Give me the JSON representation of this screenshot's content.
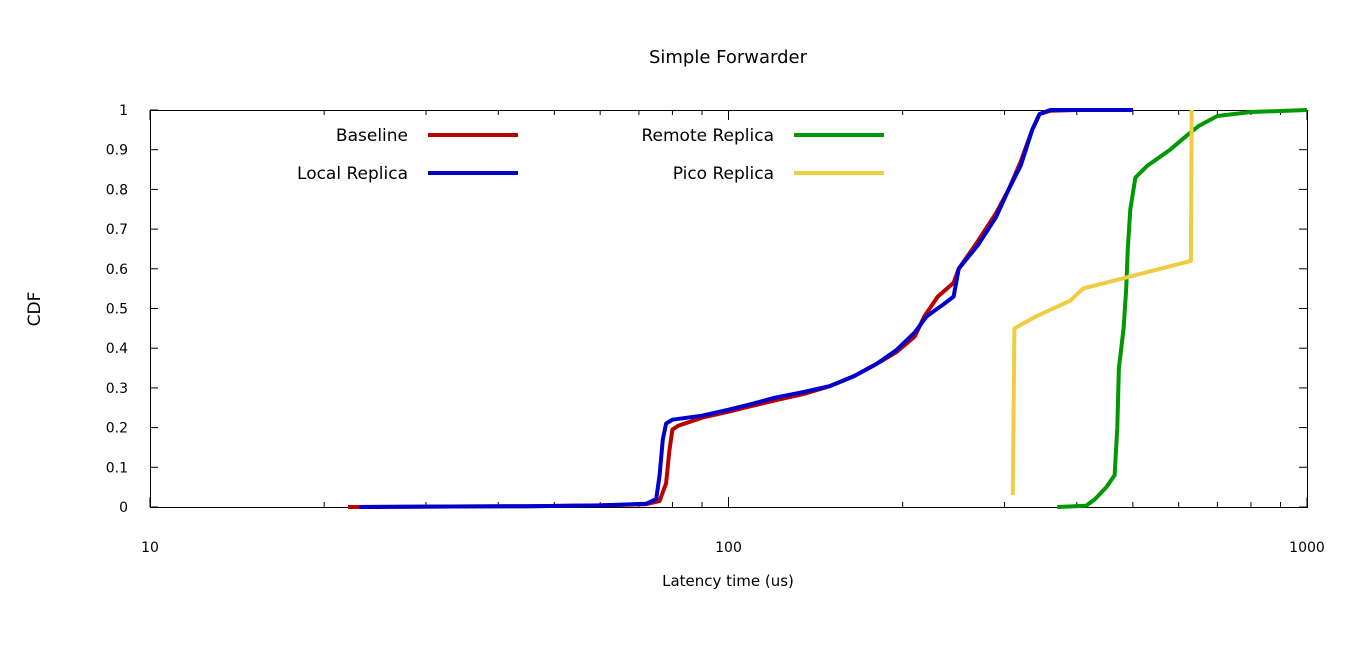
{
  "chart_data": {
    "type": "line",
    "title": "Simple Forwarder",
    "xlabel": "Latency time (us)",
    "ylabel": "CDF",
    "xscale": "log",
    "xlim": [
      10,
      1000
    ],
    "ylim": [
      0,
      1
    ],
    "x_ticks": [
      {
        "value": 10,
        "label": "10"
      },
      {
        "value": 100,
        "label": "100"
      },
      {
        "value": 1000,
        "label": "1000"
      }
    ],
    "y_ticks": [
      {
        "value": 0,
        "label": "0"
      },
      {
        "value": 0.1,
        "label": "0.1"
      },
      {
        "value": 0.2,
        "label": "0.2"
      },
      {
        "value": 0.3,
        "label": "0.3"
      },
      {
        "value": 0.4,
        "label": "0.4"
      },
      {
        "value": 0.5,
        "label": "0.5"
      },
      {
        "value": 0.6,
        "label": "0.6"
      },
      {
        "value": 0.7,
        "label": "0.7"
      },
      {
        "value": 0.8,
        "label": "0.8"
      },
      {
        "value": 0.9,
        "label": "0.9"
      },
      {
        "value": 1,
        "label": "1"
      }
    ],
    "grid": false,
    "legend_position": "top",
    "series": [
      {
        "name": "Baseline",
        "color": "#bb0000",
        "points": [
          [
            22,
            0.0
          ],
          [
            30,
            0.001
          ],
          [
            45,
            0.002
          ],
          [
            60,
            0.004
          ],
          [
            72,
            0.007
          ],
          [
            76,
            0.015
          ],
          [
            78,
            0.06
          ],
          [
            79,
            0.14
          ],
          [
            80,
            0.195
          ],
          [
            82,
            0.205
          ],
          [
            90,
            0.225
          ],
          [
            100,
            0.24
          ],
          [
            110,
            0.255
          ],
          [
            120,
            0.268
          ],
          [
            135,
            0.285
          ],
          [
            150,
            0.305
          ],
          [
            165,
            0.33
          ],
          [
            180,
            0.36
          ],
          [
            195,
            0.39
          ],
          [
            210,
            0.43
          ],
          [
            218,
            0.48
          ],
          [
            230,
            0.53
          ],
          [
            245,
            0.565
          ],
          [
            250,
            0.6
          ],
          [
            270,
            0.67
          ],
          [
            290,
            0.74
          ],
          [
            305,
            0.8
          ],
          [
            320,
            0.87
          ],
          [
            335,
            0.95
          ],
          [
            345,
            0.99
          ],
          [
            360,
            0.998
          ],
          [
            400,
            1.0
          ],
          [
            500,
            1.0
          ]
        ]
      },
      {
        "name": "Local Replica",
        "color": "#0000cc",
        "points": [
          [
            23,
            0.0
          ],
          [
            30,
            0.001
          ],
          [
            45,
            0.002
          ],
          [
            60,
            0.004
          ],
          [
            72,
            0.008
          ],
          [
            75,
            0.02
          ],
          [
            76,
            0.08
          ],
          [
            77,
            0.17
          ],
          [
            78,
            0.21
          ],
          [
            80,
            0.22
          ],
          [
            90,
            0.23
          ],
          [
            100,
            0.245
          ],
          [
            110,
            0.26
          ],
          [
            120,
            0.275
          ],
          [
            135,
            0.29
          ],
          [
            150,
            0.305
          ],
          [
            165,
            0.33
          ],
          [
            180,
            0.36
          ],
          [
            195,
            0.395
          ],
          [
            210,
            0.44
          ],
          [
            220,
            0.48
          ],
          [
            235,
            0.51
          ],
          [
            245,
            0.53
          ],
          [
            250,
            0.6
          ],
          [
            270,
            0.66
          ],
          [
            290,
            0.73
          ],
          [
            305,
            0.8
          ],
          [
            320,
            0.86
          ],
          [
            335,
            0.95
          ],
          [
            345,
            0.99
          ],
          [
            360,
            1.0
          ],
          [
            400,
            1.0
          ],
          [
            500,
            1.0
          ]
        ]
      },
      {
        "name": "Remote Replica",
        "color": "#009900",
        "points": [
          [
            370,
            0.0
          ],
          [
            415,
            0.003
          ],
          [
            430,
            0.02
          ],
          [
            450,
            0.05
          ],
          [
            465,
            0.08
          ],
          [
            470,
            0.2
          ],
          [
            473,
            0.35
          ],
          [
            482,
            0.45
          ],
          [
            487,
            0.55
          ],
          [
            490,
            0.65
          ],
          [
            495,
            0.75
          ],
          [
            505,
            0.83
          ],
          [
            530,
            0.86
          ],
          [
            580,
            0.9
          ],
          [
            625,
            0.94
          ],
          [
            650,
            0.96
          ],
          [
            700,
            0.985
          ],
          [
            800,
            0.995
          ],
          [
            1000,
            1.0
          ]
        ]
      },
      {
        "name": "Pico Replica",
        "color": "#f0cc40",
        "points": [
          [
            310,
            0.03
          ],
          [
            312,
            0.45
          ],
          [
            340,
            0.48
          ],
          [
            390,
            0.52
          ],
          [
            410,
            0.55
          ],
          [
            630,
            0.62
          ],
          [
            632,
            1.0
          ]
        ]
      }
    ]
  }
}
